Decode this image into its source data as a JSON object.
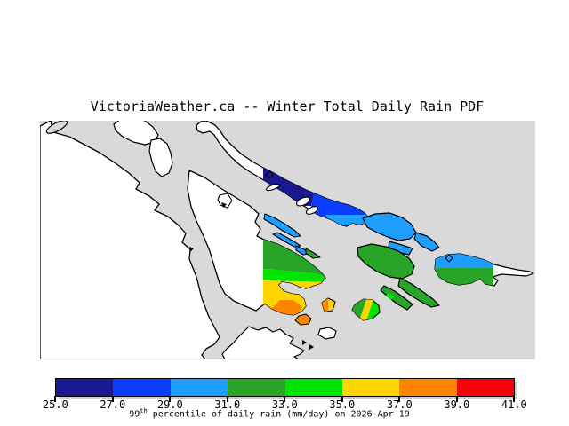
{
  "title": "VictoriaWeather.ca -- Winter Total Daily Rain PDF",
  "map": {
    "water_color": "#d9d9d9",
    "land_color": "#ffffff",
    "outline_color": "#000000"
  },
  "colorbar": {
    "tick_labels": [
      "25.0",
      "27.0",
      "29.0",
      "31.0",
      "33.0",
      "35.0",
      "37.0",
      "39.0",
      "41.0"
    ],
    "colors": [
      "#1a1a90",
      "#0a3cff",
      "#1e9eff",
      "#28a428",
      "#00e400",
      "#ffd500",
      "#ff8500",
      "#f70008"
    ],
    "caption_num": "99",
    "caption_sup": "th",
    "caption_rest": " percentile of daily rain (mm/day) on 2026-Apr-19"
  },
  "chart_data": {
    "type": "heatmap",
    "title": "VictoriaWeather.ca -- Winter Total Daily Rain PDF",
    "units": "mm/day",
    "date": "2026-Apr-19",
    "statistic": "99th percentile of daily rain",
    "scale_min": 25.0,
    "scale_max": 41.0,
    "scale_step": 2.0,
    "legend_position": "bottom",
    "bands": [
      {
        "range": "25.0-27.0",
        "color": "#1a1a90"
      },
      {
        "range": "27.0-29.0",
        "color": "#0a3cff"
      },
      {
        "range": "29.0-31.0",
        "color": "#1e9eff"
      },
      {
        "range": "31.0-33.0",
        "color": "#28a428"
      },
      {
        "range": "33.0-35.0",
        "color": "#00e400"
      },
      {
        "range": "35.0-37.0",
        "color": "#ffd500"
      },
      {
        "range": "37.0-39.0",
        "color": "#ff8500"
      },
      {
        "range": "39.0-41.0",
        "color": "#f70008"
      },
      {
        "range": "no-data",
        "color": "#ffffff"
      }
    ],
    "regions": [
      {
        "area": "northwest island chain",
        "value_band": "25-27"
      },
      {
        "area": "large central-north island",
        "value_band": "27-29"
      },
      {
        "area": "central channel islets and northeast islands",
        "value_band": "29-31"
      },
      {
        "area": "central and eastern islands",
        "value_band": "31-33"
      },
      {
        "area": "peninsula mid-section",
        "value_band": "33-35"
      },
      {
        "area": "peninsula south section",
        "value_band": "35-37"
      },
      {
        "area": "small southern islets",
        "value_band": "37-39"
      }
    ]
  }
}
